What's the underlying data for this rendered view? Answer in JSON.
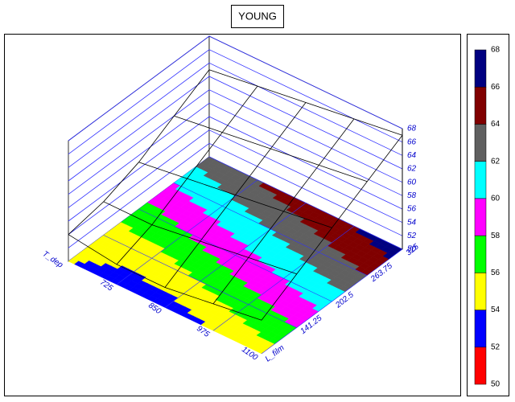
{
  "chart_data": {
    "type": "surface3d",
    "title": "YOUNG",
    "x_label": "T_dep",
    "y_label": "L_film",
    "x": [
      600,
      725,
      850,
      975,
      1100
    ],
    "y": [
      80,
      141.25,
      202.5,
      263.75,
      325
    ],
    "z": [
      [
        54,
        55,
        57,
        60,
        63
      ],
      [
        53,
        55,
        58,
        61,
        64
      ],
      [
        53,
        56,
        59,
        62,
        65
      ],
      [
        54,
        57,
        60,
        63,
        66
      ],
      [
        55,
        58,
        61,
        64,
        67
      ]
    ],
    "xlim": [
      600,
      1100
    ],
    "xticks": [
      725,
      850,
      975,
      1100
    ],
    "ylim": [
      80,
      325
    ],
    "yticks": [
      141.25,
      202.5,
      263.75,
      325
    ],
    "zlim": [
      50,
      68
    ],
    "zticks": [
      50,
      52,
      54,
      56,
      58,
      60,
      62,
      64,
      66,
      68
    ],
    "colorbar": {
      "levels": [
        50,
        52,
        54,
        56,
        58,
        60,
        62,
        64,
        66,
        68
      ],
      "colors": [
        "#ff0000",
        "#0000ff",
        "#ffff00",
        "#00ff00",
        "#ff00ff",
        "#00ffff",
        "#606060",
        "#800000",
        "#000080"
      ]
    }
  }
}
